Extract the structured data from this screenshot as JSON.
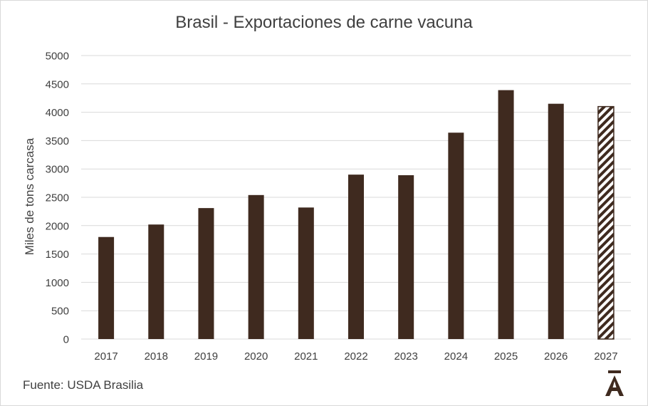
{
  "chart_data": {
    "type": "bar",
    "title": "Brasil - Exportaciones de carne vacuna",
    "xlabel": "",
    "ylabel": "Miles de tons carcasa",
    "ylim": [
      0,
      5000
    ],
    "yticks": [
      "0",
      "500",
      "1000",
      "1500",
      "2000",
      "2500",
      "3000",
      "3500",
      "4000",
      "4500",
      "5000"
    ],
    "categories": [
      "2017",
      "2018",
      "2019",
      "2020",
      "2021",
      "2022",
      "2023",
      "2024",
      "2025",
      "2026",
      "2027"
    ],
    "values": [
      1800,
      2020,
      2310,
      2540,
      2320,
      2900,
      2890,
      3640,
      4390,
      4150,
      4100
    ],
    "projected": [
      false,
      false,
      false,
      false,
      false,
      false,
      false,
      false,
      false,
      false,
      true
    ],
    "grid": true,
    "legend": "none",
    "colors": {
      "bar": "#3f2a1f",
      "projected_hatch": "#3f2a1f",
      "grid": "#d9d9d9"
    }
  },
  "footer": {
    "source": "Fuente: USDA Brasilia",
    "logo_icon": "A-macron-logo-icon"
  }
}
